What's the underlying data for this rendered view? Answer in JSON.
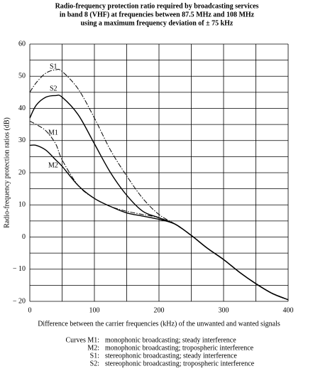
{
  "chart_data": {
    "type": "line",
    "title": [
      "Radio-frequency protection ratio required by broadcasting services",
      "in band 8 (VHF) at frequencies between 87.5 MHz and 108 MHz",
      "using a maximum frequency deviation of ± 75 kHz"
    ],
    "x_label": "Difference between the carrier frequencies (kHz) of the unwanted and wanted signals",
    "y_label": "Radio-frequency protection ratios (dB)",
    "x": [
      0,
      10,
      25,
      40,
      50,
      75,
      100,
      125,
      150,
      175,
      200,
      225,
      250,
      275,
      300,
      325,
      350,
      375,
      400
    ],
    "series": [
      {
        "name": "S1",
        "color": "#000000",
        "dash": "dashdot",
        "values": [
          45,
          48,
          51,
          52,
          51.5,
          46,
          37,
          27,
          19,
          12,
          7,
          4,
          0.5,
          -3.5,
          -7,
          -11,
          -14.5,
          -17.5,
          -19.5
        ]
      },
      {
        "name": "S2",
        "color": "#000000",
        "dash": "solid",
        "values": [
          37,
          41,
          43.5,
          44,
          43.5,
          38,
          29,
          20,
          13,
          8,
          6,
          4,
          0.5,
          -3.5,
          -7,
          -11,
          -14.5,
          -17.5,
          -19.5
        ]
      },
      {
        "name": "M1",
        "color": "#000000",
        "dash": "dashdot",
        "values": [
          36,
          35,
          33,
          29,
          24,
          16,
          12,
          9.5,
          8,
          7,
          6,
          4,
          0.5,
          -3.5,
          -7,
          -11,
          -14.5,
          -17.5,
          -19.5
        ]
      },
      {
        "name": "M2",
        "color": "#000000",
        "dash": "solid",
        "values": [
          28.5,
          28.5,
          27,
          24,
          22,
          16,
          12,
          9.5,
          7.5,
          6.5,
          5.5,
          4,
          0.5,
          -3.5,
          -7,
          -11,
          -14.5,
          -17.5,
          -19.5
        ]
      }
    ],
    "xlim": [
      0,
      400
    ],
    "xticks": [
      0,
      100,
      200,
      300,
      400
    ],
    "minor_xticks": [
      50,
      150,
      250,
      350
    ],
    "ylim": [
      -20,
      60
    ],
    "yticks": [
      {
        "value": -20,
        "label": "− 20"
      },
      {
        "value": -10,
        "label": "− 10"
      },
      0,
      10,
      20,
      30,
      40,
      50,
      60
    ],
    "minor_yticks": [
      -15,
      -5,
      5,
      15,
      25,
      35,
      45,
      55
    ],
    "grid": true,
    "legend_entries": [
      {
        "label": "Curves M1:",
        "description": "monophonic broadcasting; steady interference"
      },
      {
        "label": "M2:",
        "description": "monophonic broadcasting; tropospheric interference"
      },
      {
        "label": "S1:",
        "description": "stereophonic broadcasting; steady interference"
      },
      {
        "label": "S2:",
        "description": "stereophonic broadcasting; tropospheric interference"
      }
    ]
  }
}
